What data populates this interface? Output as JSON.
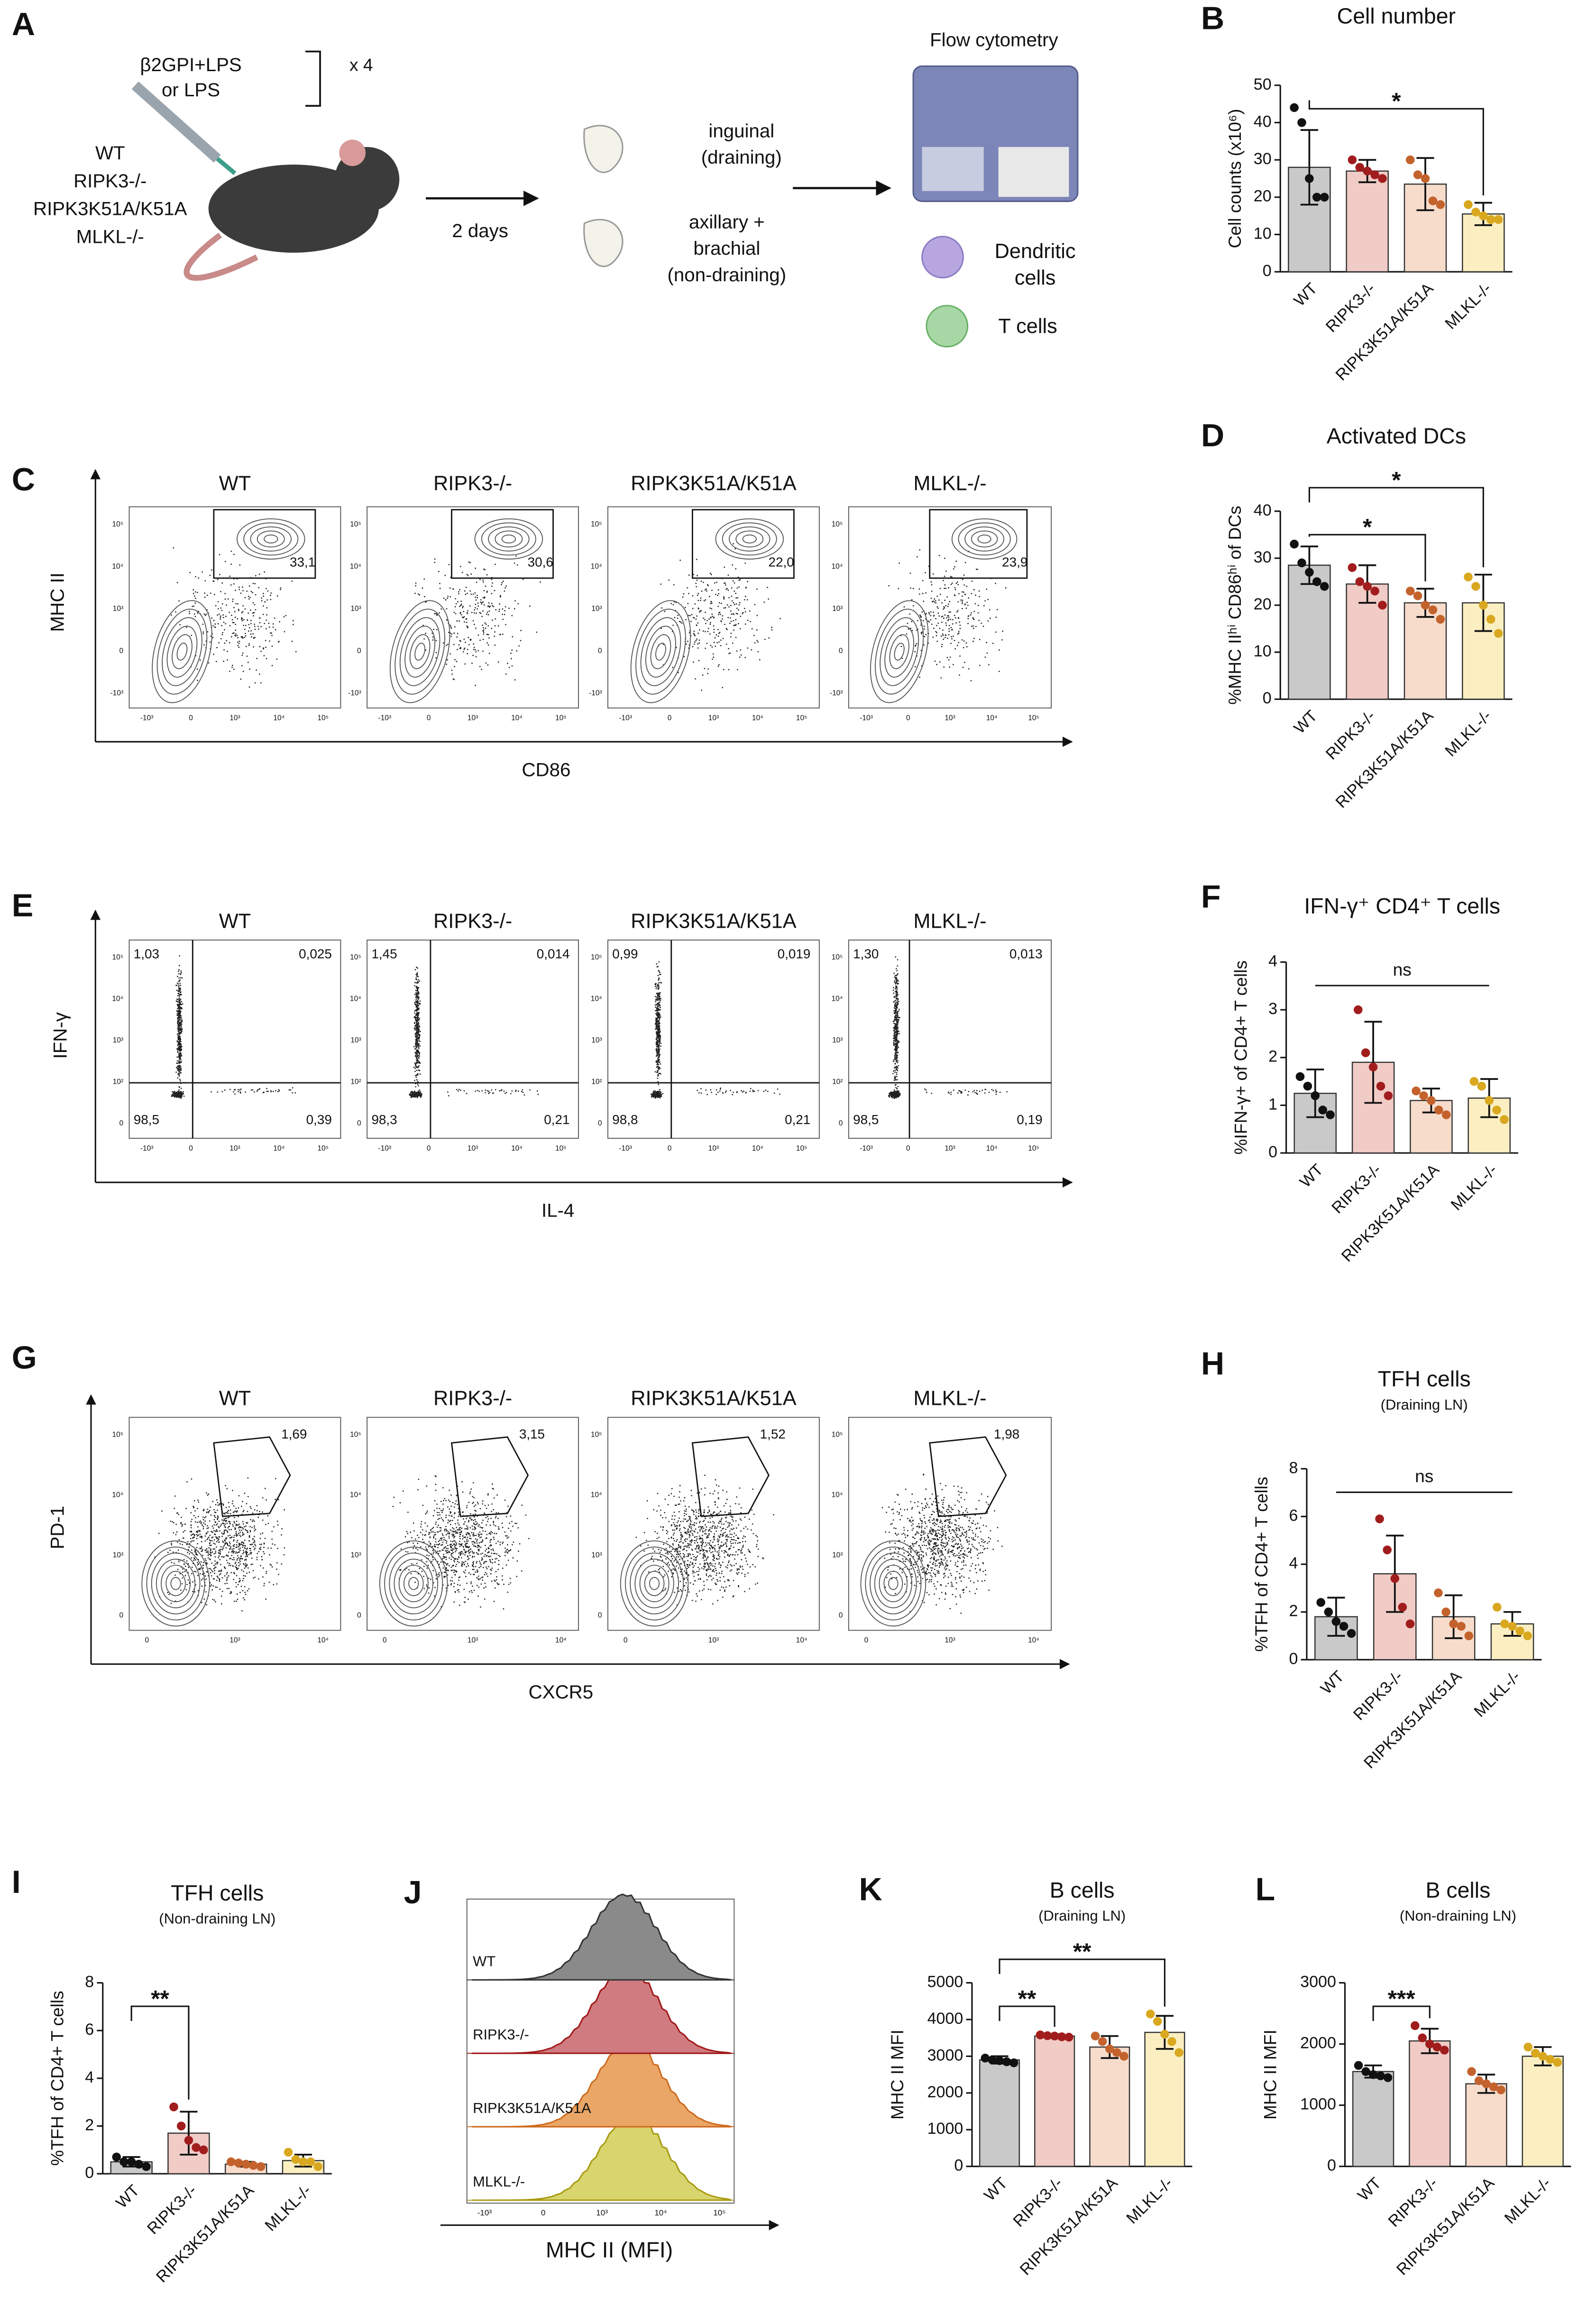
{
  "genotypes": [
    "WT",
    "RIPK3-/-",
    "RIPK3K51A/K51A",
    "MLKL-/-"
  ],
  "panel_a": {
    "panel": "A",
    "injection": [
      "β2GPI+LPS",
      "or LPS"
    ],
    "repeat": "x 4",
    "wait": "2 days",
    "draining": [
      "inguinal",
      "(draining)"
    ],
    "non_draining": [
      "axillary +",
      "brachial",
      "(non-draining)"
    ],
    "readout": "Flow cytometry",
    "dc": [
      "Dendritic",
      "cells"
    ],
    "t_cells": "T cells"
  },
  "flow_c": {
    "panel": "C",
    "y_label": "MHC II",
    "x_label": "CD86",
    "gates": [
      "33,1",
      "30,6",
      "22,0",
      "23,9"
    ],
    "y_ticks": [
      "10⁵",
      "10⁴",
      "10³",
      "0",
      "-10³"
    ],
    "x_ticks": [
      "-10³",
      "0",
      "10³",
      "10⁴",
      "10⁵"
    ]
  },
  "flow_e": {
    "panel": "E",
    "y_label": "IFN-γ",
    "x_label": "IL-4",
    "quadrants": [
      [
        "1,03",
        "0,025",
        "98,5",
        "0,39"
      ],
      [
        "1,45",
        "0,014",
        "98,3",
        "0,21"
      ],
      [
        "0,99",
        "0,019",
        "98,8",
        "0,21"
      ],
      [
        "1,30",
        "0,013",
        "98,5",
        "0,19"
      ]
    ],
    "y_ticks": [
      "10⁵",
      "10⁴",
      "10³",
      "10²",
      "0"
    ],
    "x_ticks": [
      "-10³",
      "0",
      "10³",
      "10⁴",
      "10⁵"
    ]
  },
  "flow_g": {
    "panel": "G",
    "y_label": "PD-1",
    "x_label": "CXCR5",
    "gates": [
      "1,69",
      "3,15",
      "1,52",
      "1,98"
    ],
    "y_ticks": [
      "10⁵",
      "10⁴",
      "10³",
      "0"
    ],
    "x_ticks": [
      "0",
      "10³",
      "10⁴"
    ]
  },
  "flow_j": {
    "panel": "J",
    "x_label": "MHC II (MFI)",
    "x_ticks": [
      "-10³",
      "0",
      "10³",
      "10⁴",
      "10⁵"
    ],
    "label_colors": [
      "#111111",
      "#b01e1e",
      "#d2691e",
      "#b3a000"
    ],
    "fills": [
      "#8a8a8a",
      "#cf7b80",
      "#e9a667",
      "#d8d46e"
    ],
    "strokes": [
      "#333333",
      "#a01818",
      "#cf6a1e",
      "#a89a10"
    ]
  },
  "chart_data": [
    {
      "type": "bar",
      "panel": "B",
      "title": "Cell number",
      "ylabel": "Cell counts (x10⁶)",
      "categories": [
        "WT",
        "RIPK3-/-",
        "RIPK3K51A/K51A",
        "MLKL-/-"
      ],
      "values": [
        28,
        27,
        23.5,
        15.5
      ],
      "errors": [
        10,
        3,
        7,
        3
      ],
      "points": [
        [
          44,
          40,
          25,
          20,
          20
        ],
        [
          30,
          28,
          27,
          26,
          25
        ],
        [
          30,
          26,
          25,
          19,
          18
        ],
        [
          18,
          16,
          15,
          14,
          14
        ]
      ],
      "colors": [
        "#c9c9c9",
        "#f1cbc6",
        "#f7dccb",
        "#fbefc2"
      ],
      "point_colors": [
        "#111111",
        "#a11d1d",
        "#c4622d",
        "#d9a81f"
      ],
      "ylim": [
        0,
        50
      ],
      "yticks": [
        0,
        10,
        20,
        30,
        40,
        50
      ],
      "comparisons": [
        {
          "from": "WT",
          "to": "MLKL-/-",
          "label": "*",
          "bracket": true
        }
      ]
    },
    {
      "type": "bar",
      "panel": "D",
      "title": "Activated DCs",
      "ylabel": "%MHC IIʰⁱ CD86ʰⁱ of DCs",
      "categories": [
        "WT",
        "RIPK3-/-",
        "RIPK3K51A/K51A",
        "MLKL-/-"
      ],
      "values": [
        28.5,
        24.5,
        20.5,
        20.5
      ],
      "errors": [
        4,
        4,
        3,
        6
      ],
      "points": [
        [
          33,
          29,
          27,
          25,
          24
        ],
        [
          28,
          25,
          24,
          23,
          20
        ],
        [
          23,
          22,
          20,
          19,
          17
        ],
        [
          26,
          24,
          20,
          17,
          14
        ]
      ],
      "colors": [
        "#c9c9c9",
        "#f1cbc6",
        "#f7dccb",
        "#fbefc2"
      ],
      "point_colors": [
        "#111111",
        "#a11d1d",
        "#c4622d",
        "#d9a81f"
      ],
      "ylim": [
        0,
        40
      ],
      "yticks": [
        0,
        10,
        20,
        30,
        40
      ],
      "comparisons": [
        {
          "from": "WT",
          "to": "RIPK3K51A/K51A",
          "label": "*",
          "bracket": true
        },
        {
          "from": "WT",
          "to": "MLKL-/-",
          "label": "*",
          "bracket": true
        }
      ]
    },
    {
      "type": "bar",
      "panel": "F",
      "title": "IFN-γ⁺ CD4⁺ T cells",
      "ylabel": "%IFN-γ+ of CD4+ T cells",
      "categories": [
        "WT",
        "RIPK3-/-",
        "RIPK3K51A/K51A",
        "MLKL-/-"
      ],
      "values": [
        1.25,
        1.9,
        1.1,
        1.15
      ],
      "errors": [
        0.5,
        0.85,
        0.25,
        0.4
      ],
      "points": [
        [
          1.6,
          1.4,
          1.2,
          0.9,
          0.8
        ],
        [
          3.0,
          2.1,
          1.8,
          1.4,
          1.2
        ],
        [
          1.3,
          1.2,
          1.1,
          0.9,
          0.8
        ],
        [
          1.5,
          1.4,
          1.1,
          0.9,
          0.7
        ]
      ],
      "colors": [
        "#c9c9c9",
        "#f1cbc6",
        "#f7dccb",
        "#fbefc2"
      ],
      "point_colors": [
        "#111111",
        "#a11d1d",
        "#c4622d",
        "#d9a81f"
      ],
      "ylim": [
        0,
        4
      ],
      "yticks": [
        0,
        1,
        2,
        3,
        4
      ],
      "comparisons": [
        {
          "from": "WT",
          "to": "MLKL-/-",
          "label": "ns",
          "bracket": false
        }
      ]
    },
    {
      "type": "bar",
      "panel": "H",
      "title": "TFH cells",
      "subtitle": "(Draining LN)",
      "ylabel": "%TFH of CD4+ T cells",
      "categories": [
        "WT",
        "RIPK3-/-",
        "RIPK3K51A/K51A",
        "MLKL-/-"
      ],
      "values": [
        1.8,
        3.6,
        1.8,
        1.5
      ],
      "errors": [
        0.8,
        1.6,
        0.9,
        0.5
      ],
      "points": [
        [
          2.4,
          2.0,
          1.6,
          1.4,
          1.1
        ],
        [
          5.9,
          4.6,
          3.4,
          2.2,
          1.5
        ],
        [
          2.8,
          2.0,
          1.5,
          1.4,
          1.0
        ],
        [
          2.2,
          1.5,
          1.4,
          1.2,
          1.0
        ]
      ],
      "colors": [
        "#c9c9c9",
        "#f1cbc6",
        "#f7dccb",
        "#fbefc2"
      ],
      "point_colors": [
        "#111111",
        "#a11d1d",
        "#c4622d",
        "#d9a81f"
      ],
      "ylim": [
        0,
        8
      ],
      "yticks": [
        0,
        2,
        4,
        6,
        8
      ],
      "comparisons": [
        {
          "from": "WT",
          "to": "MLKL-/-",
          "label": "ns",
          "bracket": false
        }
      ]
    },
    {
      "type": "bar",
      "panel": "I",
      "title": "TFH cells",
      "subtitle": "(Non-draining LN)",
      "ylabel": "%TFH of CD4+ T cells",
      "categories": [
        "WT",
        "RIPK3-/-",
        "RIPK3K51A/K51A",
        "MLKL-/-"
      ],
      "values": [
        0.5,
        1.7,
        0.4,
        0.55
      ],
      "errors": [
        0.2,
        0.9,
        0.1,
        0.25
      ],
      "points": [
        [
          0.7,
          0.5,
          0.5,
          0.4,
          0.3
        ],
        [
          2.8,
          2.0,
          1.4,
          1.1,
          1.0
        ],
        [
          0.5,
          0.45,
          0.4,
          0.35,
          0.3
        ],
        [
          0.9,
          0.6,
          0.5,
          0.5,
          0.3
        ]
      ],
      "colors": [
        "#c9c9c9",
        "#f1cbc6",
        "#f7dccb",
        "#fbefc2"
      ],
      "point_colors": [
        "#111111",
        "#a11d1d",
        "#c4622d",
        "#d9a81f"
      ],
      "ylim": [
        0,
        8
      ],
      "yticks": [
        0,
        2,
        4,
        6,
        8
      ],
      "comparisons": [
        {
          "from": "WT",
          "to": "RIPK3-/-",
          "label": "**",
          "bracket": true
        }
      ]
    },
    {
      "type": "bar",
      "panel": "K",
      "title": "B cells",
      "subtitle": "(Draining LN)",
      "ylabel": "MHC II MFI",
      "categories": [
        "WT",
        "RIPK3-/-",
        "RIPK3K51A/K51A",
        "MLKL-/-"
      ],
      "values": [
        2900,
        3550,
        3250,
        3650
      ],
      "errors": [
        100,
        50,
        300,
        450
      ],
      "points": [
        [
          2950,
          2900,
          2880,
          2850,
          2820
        ],
        [
          3580,
          3560,
          3550,
          3530,
          3520
        ],
        [
          3550,
          3400,
          3200,
          3100,
          3000
        ],
        [
          4150,
          3950,
          3600,
          3400,
          3100
        ]
      ],
      "colors": [
        "#c9c9c9",
        "#f1cbc6",
        "#f7dccb",
        "#fbefc2"
      ],
      "point_colors": [
        "#111111",
        "#a11d1d",
        "#c4622d",
        "#d9a81f"
      ],
      "ylim": [
        0,
        5000
      ],
      "yticks": [
        0,
        1000,
        2000,
        3000,
        4000,
        5000
      ],
      "comparisons": [
        {
          "from": "WT",
          "to": "RIPK3-/-",
          "label": "**",
          "bracket": true
        },
        {
          "from": "WT",
          "to": "MLKL-/-",
          "label": "**",
          "bracket": true
        }
      ]
    },
    {
      "type": "bar",
      "panel": "L",
      "title": "B cells",
      "subtitle": "(Non-draining LN)",
      "ylabel": "MHC II MFI",
      "categories": [
        "WT",
        "RIPK3-/-",
        "RIPK3K51A/K51A",
        "MLKL-/-"
      ],
      "values": [
        1550,
        2050,
        1350,
        1800
      ],
      "errors": [
        100,
        200,
        150,
        150
      ],
      "points": [
        [
          1650,
          1550,
          1500,
          1480,
          1450
        ],
        [
          2300,
          2100,
          2000,
          1950,
          1900
        ],
        [
          1550,
          1400,
          1350,
          1300,
          1250
        ],
        [
          1950,
          1850,
          1800,
          1750,
          1700
        ]
      ],
      "colors": [
        "#c9c9c9",
        "#f1cbc6",
        "#f7dccb",
        "#fbefc2"
      ],
      "point_colors": [
        "#111111",
        "#a11d1d",
        "#c4622d",
        "#d9a81f"
      ],
      "ylim": [
        0,
        3000
      ],
      "yticks": [
        0,
        1000,
        2000,
        3000
      ],
      "comparisons": [
        {
          "from": "WT",
          "to": "RIPK3-/-",
          "label": "***",
          "bracket": true
        }
      ]
    }
  ]
}
